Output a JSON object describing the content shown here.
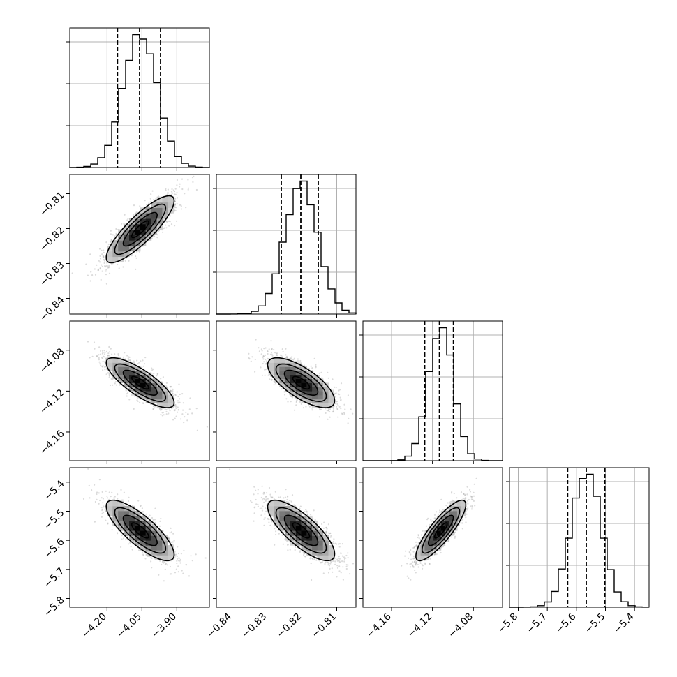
{
  "chart_data": {
    "type": "corner",
    "parameters": [
      {
        "axis_range": [
          -4.36,
          -3.76
        ],
        "ticks": [
          -4.2,
          -4.05,
          -3.9
        ],
        "tick_labels": [
          "−4.20",
          "−4.05",
          "−3.90"
        ],
        "center": -4.0575,
        "sigma": 0.073,
        "quantiles": [
          -4.155,
          -4.06,
          -3.97
        ]
      },
      {
        "axis_range": [
          -0.8445,
          -0.8045
        ],
        "ticks": [
          -0.84,
          -0.83,
          -0.82,
          -0.81
        ],
        "tick_labels": [
          "−0.84",
          "−0.83",
          "−0.82",
          "−0.81"
        ],
        "center": -0.8202,
        "sigma": 0.0048,
        "quantiles": [
          -0.8259,
          -0.8203,
          -0.8153
        ]
      },
      {
        "axis_range": [
          -4.188,
          -4.0515
        ],
        "ticks": [
          -4.16,
          -4.12,
          -4.08
        ],
        "tick_labels": [
          "−4.16",
          "−4.12",
          "−4.08"
        ],
        "center": -4.1118,
        "sigma": 0.0122,
        "quantiles": [
          -4.1276,
          -4.1132,
          -4.0995
        ]
      },
      {
        "axis_range": [
          -5.83,
          -5.35
        ],
        "ticks": [
          -5.8,
          -5.7,
          -5.6,
          -5.5,
          -5.4
        ],
        "tick_labels": [
          "−5.8",
          "−5.7",
          "−5.6",
          "−5.5",
          "−5.4"
        ],
        "center": -5.566,
        "sigma": 0.052,
        "quantiles": [
          -5.63,
          -5.566,
          -5.502
        ]
      }
    ],
    "correlations": [
      [
        1.0,
        0.85,
        -0.8,
        -0.8
      ],
      [
        0.85,
        1.0,
        -0.72,
        -0.78
      ],
      [
        -0.8,
        -0.72,
        1.0,
        0.85
      ],
      [
        -0.8,
        -0.78,
        0.85,
        1.0
      ]
    ],
    "contour_levels_sigma": [
      0.5,
      1.0,
      1.5,
      2.0
    ],
    "histogram_bins": 20,
    "grid": true,
    "line_color": "#000000",
    "point_color": "#999999",
    "grid_color": "#b0b0b0"
  }
}
